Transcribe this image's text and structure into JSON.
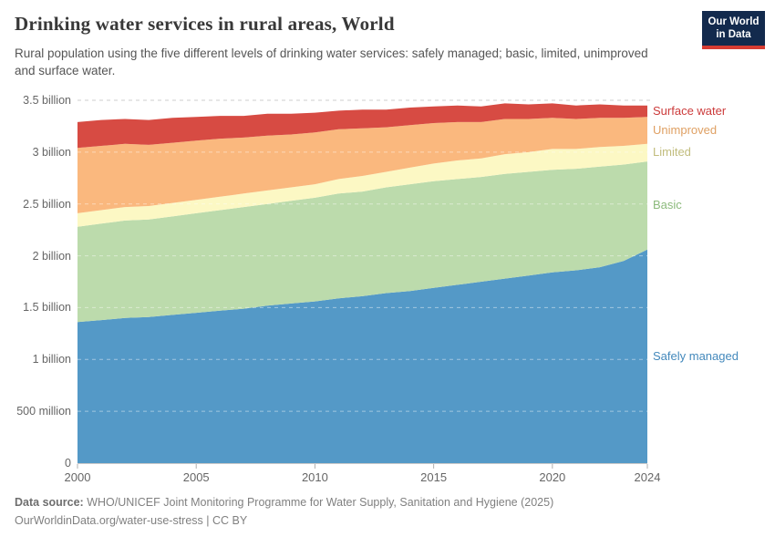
{
  "header": {
    "title": "Drinking water services in rural areas, World",
    "subtitle": "Rural population using the five different levels of drinking water services: safely managed; basic, limited, unimproved and surface water.",
    "logo_line1": "Our World",
    "logo_line2": "in Data",
    "logo_bg_color": "#132A4D",
    "logo_bar_color": "#D73C32"
  },
  "footer": {
    "source_label": "Data source:",
    "source_text": "WHO/UNICEF Joint Monitoring Programme for Water Supply, Sanitation and Hygiene (2025)",
    "attribution": "OurWorldinData.org/water-use-stress | CC BY"
  },
  "chart_data": {
    "type": "area",
    "stacked": true,
    "values_unit": "billion people",
    "x": [
      2000,
      2001,
      2002,
      2003,
      2004,
      2005,
      2006,
      2007,
      2008,
      2009,
      2010,
      2011,
      2012,
      2013,
      2014,
      2015,
      2016,
      2017,
      2018,
      2019,
      2020,
      2021,
      2022,
      2023,
      2024
    ],
    "series": [
      {
        "name": "Safely managed",
        "color": "#5499C7",
        "label_color": "#4489BC",
        "values": [
          1.36,
          1.38,
          1.4,
          1.41,
          1.43,
          1.45,
          1.47,
          1.49,
          1.52,
          1.54,
          1.56,
          1.59,
          1.61,
          1.64,
          1.66,
          1.69,
          1.72,
          1.75,
          1.78,
          1.81,
          1.84,
          1.86,
          1.89,
          1.95,
          2.06
        ]
      },
      {
        "name": "Basic",
        "color": "#BCDBAC",
        "label_color": "#8CBA7C",
        "values": [
          0.92,
          0.93,
          0.94,
          0.94,
          0.95,
          0.96,
          0.97,
          0.98,
          0.98,
          0.99,
          1.0,
          1.01,
          1.01,
          1.02,
          1.03,
          1.03,
          1.02,
          1.01,
          1.01,
          1.0,
          0.99,
          0.98,
          0.97,
          0.93,
          0.85
        ]
      },
      {
        "name": "Limited",
        "color": "#FCF8C4",
        "label_color": "#C2BD7E",
        "values": [
          0.13,
          0.13,
          0.13,
          0.13,
          0.13,
          0.13,
          0.13,
          0.13,
          0.13,
          0.13,
          0.13,
          0.14,
          0.15,
          0.15,
          0.16,
          0.17,
          0.18,
          0.18,
          0.19,
          0.19,
          0.2,
          0.19,
          0.19,
          0.18,
          0.17
        ]
      },
      {
        "name": "Unimproved",
        "color": "#FAB87E",
        "label_color": "#DFA063",
        "values": [
          0.63,
          0.62,
          0.61,
          0.59,
          0.58,
          0.57,
          0.56,
          0.54,
          0.53,
          0.51,
          0.5,
          0.48,
          0.46,
          0.43,
          0.41,
          0.39,
          0.37,
          0.35,
          0.34,
          0.32,
          0.3,
          0.29,
          0.28,
          0.27,
          0.26
        ]
      },
      {
        "name": "Surface water",
        "color": "#D74B43",
        "label_color": "#CC3B3B",
        "values": [
          0.25,
          0.25,
          0.24,
          0.24,
          0.24,
          0.23,
          0.22,
          0.21,
          0.21,
          0.2,
          0.19,
          0.18,
          0.18,
          0.17,
          0.17,
          0.16,
          0.16,
          0.15,
          0.15,
          0.14,
          0.14,
          0.13,
          0.13,
          0.12,
          0.11
        ]
      }
    ],
    "xlim": [
      2000,
      2024
    ],
    "ylim": [
      0,
      3.5
    ],
    "x_ticks": [
      {
        "v": 2000,
        "label": "2000"
      },
      {
        "v": 2005,
        "label": "2005"
      },
      {
        "v": 2010,
        "label": "2010"
      },
      {
        "v": 2015,
        "label": "2015"
      },
      {
        "v": 2020,
        "label": "2020"
      },
      {
        "v": 2024,
        "label": "2024"
      }
    ],
    "y_ticks": [
      {
        "v": 0,
        "label": "0"
      },
      {
        "v": 0.5,
        "label": "500 million"
      },
      {
        "v": 1,
        "label": "1 billion"
      },
      {
        "v": 1.5,
        "label": "1.5 billion"
      },
      {
        "v": 2,
        "label": "2 billion"
      },
      {
        "v": 2.5,
        "label": "2.5 billion"
      },
      {
        "v": 3,
        "label": "3 billion"
      },
      {
        "v": 3.5,
        "label": "3.5 billion"
      }
    ],
    "grid": "dashed",
    "legend_position": "right"
  }
}
